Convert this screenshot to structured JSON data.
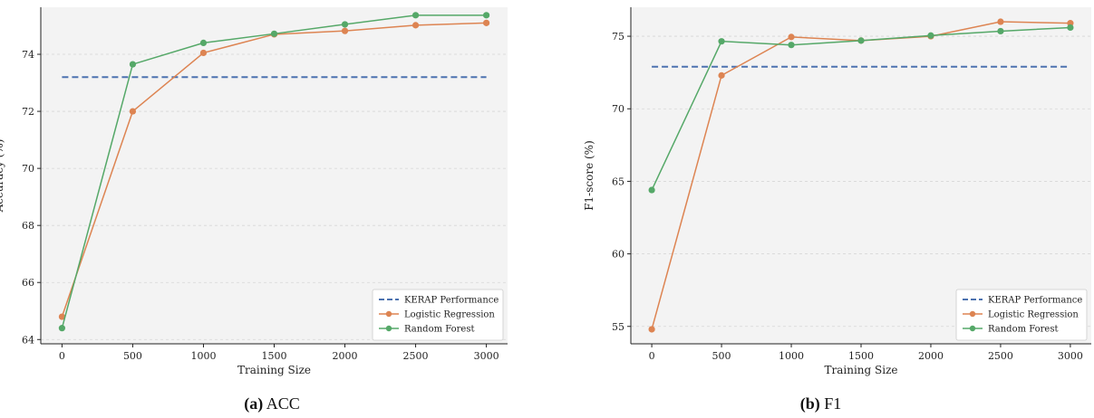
{
  "captions": [
    {
      "label": "(a)",
      "text": "ACC"
    },
    {
      "label": "(b)",
      "text": "F1"
    }
  ],
  "colors": {
    "background": "#f3f3f3",
    "kerap": "#4c72b0",
    "logistic": "#dd8452",
    "forest": "#55a868",
    "grid": "#d6d6d6"
  },
  "chart_data": [
    {
      "type": "line",
      "title": "",
      "xlabel": "Training Size",
      "ylabel": "Accuracy (%)",
      "x": [
        0,
        500,
        1000,
        1500,
        2000,
        2500,
        3000
      ],
      "xticks": [
        0,
        500,
        1000,
        1500,
        2000,
        2500,
        3000
      ],
      "yticks": [
        64,
        66,
        68,
        70,
        72,
        74
      ],
      "xlim": [
        -150,
        3150
      ],
      "ylim": [
        63.85,
        75.65
      ],
      "grid": "horizontal dashed",
      "legend_position": "lower-right",
      "series": [
        {
          "name": "KERAP Performance",
          "style": "dashed",
          "values": [
            73.2,
            73.2,
            73.2,
            73.2,
            73.2,
            73.2,
            73.2
          ]
        },
        {
          "name": "Logistic Regression",
          "style": "line-marker",
          "values": [
            64.8,
            72.0,
            74.05,
            74.7,
            74.82,
            75.02,
            75.1
          ]
        },
        {
          "name": "Random Forest",
          "style": "line-marker",
          "values": [
            64.4,
            73.65,
            74.4,
            74.72,
            75.05,
            75.37,
            75.37
          ]
        }
      ]
    },
    {
      "type": "line",
      "title": "",
      "xlabel": "Training Size",
      "ylabel": "F1-score (%)",
      "x": [
        0,
        500,
        1000,
        1500,
        2000,
        2500,
        3000
      ],
      "xticks": [
        0,
        500,
        1000,
        1500,
        2000,
        2500,
        3000
      ],
      "yticks": [
        55,
        60,
        65,
        70,
        75
      ],
      "xlim": [
        -150,
        3150
      ],
      "ylim": [
        53.8,
        77.0
      ],
      "grid": "horizontal dashed",
      "legend_position": "lower-right",
      "series": [
        {
          "name": "KERAP Performance",
          "style": "dashed",
          "values": [
            72.9,
            72.9,
            72.9,
            72.9,
            72.9,
            72.9,
            72.9
          ]
        },
        {
          "name": "Logistic Regression",
          "style": "line-marker",
          "values": [
            54.8,
            72.3,
            74.95,
            74.7,
            75.0,
            76.0,
            75.9
          ]
        },
        {
          "name": "Random Forest",
          "style": "line-marker",
          "values": [
            64.4,
            74.65,
            74.4,
            74.7,
            75.05,
            75.35,
            75.6
          ]
        }
      ]
    }
  ]
}
